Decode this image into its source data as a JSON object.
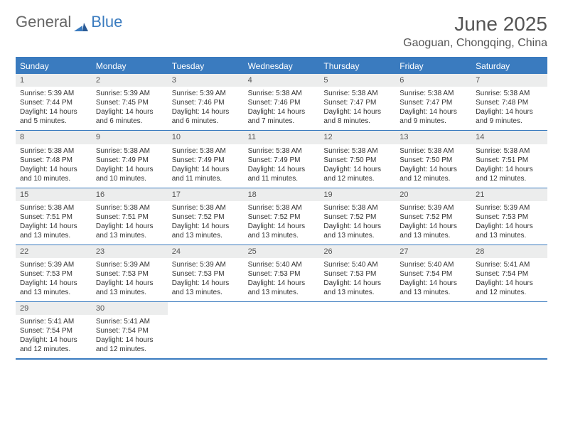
{
  "logo": {
    "text1": "General",
    "text2": "Blue"
  },
  "title": "June 2025",
  "location": "Gaoguan, Chongqing, China",
  "colors": {
    "accent": "#3a7bbf",
    "daynum_bg": "#eceded",
    "text": "#333333",
    "header_text": "#555555",
    "background": "#ffffff"
  },
  "typography": {
    "title_fontsize": 28,
    "location_fontsize": 16,
    "dow_fontsize": 12,
    "daynum_fontsize": 11,
    "body_fontsize": 10
  },
  "layout": {
    "columns": 7,
    "rows": 5
  },
  "dow": [
    "Sunday",
    "Monday",
    "Tuesday",
    "Wednesday",
    "Thursday",
    "Friday",
    "Saturday"
  ],
  "weeks": [
    [
      {
        "n": "1",
        "sr": "Sunrise: 5:39 AM",
        "ss": "Sunset: 7:44 PM",
        "dl": "Daylight: 14 hours and 5 minutes."
      },
      {
        "n": "2",
        "sr": "Sunrise: 5:39 AM",
        "ss": "Sunset: 7:45 PM",
        "dl": "Daylight: 14 hours and 6 minutes."
      },
      {
        "n": "3",
        "sr": "Sunrise: 5:39 AM",
        "ss": "Sunset: 7:46 PM",
        "dl": "Daylight: 14 hours and 6 minutes."
      },
      {
        "n": "4",
        "sr": "Sunrise: 5:38 AM",
        "ss": "Sunset: 7:46 PM",
        "dl": "Daylight: 14 hours and 7 minutes."
      },
      {
        "n": "5",
        "sr": "Sunrise: 5:38 AM",
        "ss": "Sunset: 7:47 PM",
        "dl": "Daylight: 14 hours and 8 minutes."
      },
      {
        "n": "6",
        "sr": "Sunrise: 5:38 AM",
        "ss": "Sunset: 7:47 PM",
        "dl": "Daylight: 14 hours and 9 minutes."
      },
      {
        "n": "7",
        "sr": "Sunrise: 5:38 AM",
        "ss": "Sunset: 7:48 PM",
        "dl": "Daylight: 14 hours and 9 minutes."
      }
    ],
    [
      {
        "n": "8",
        "sr": "Sunrise: 5:38 AM",
        "ss": "Sunset: 7:48 PM",
        "dl": "Daylight: 14 hours and 10 minutes."
      },
      {
        "n": "9",
        "sr": "Sunrise: 5:38 AM",
        "ss": "Sunset: 7:49 PM",
        "dl": "Daylight: 14 hours and 10 minutes."
      },
      {
        "n": "10",
        "sr": "Sunrise: 5:38 AM",
        "ss": "Sunset: 7:49 PM",
        "dl": "Daylight: 14 hours and 11 minutes."
      },
      {
        "n": "11",
        "sr": "Sunrise: 5:38 AM",
        "ss": "Sunset: 7:49 PM",
        "dl": "Daylight: 14 hours and 11 minutes."
      },
      {
        "n": "12",
        "sr": "Sunrise: 5:38 AM",
        "ss": "Sunset: 7:50 PM",
        "dl": "Daylight: 14 hours and 12 minutes."
      },
      {
        "n": "13",
        "sr": "Sunrise: 5:38 AM",
        "ss": "Sunset: 7:50 PM",
        "dl": "Daylight: 14 hours and 12 minutes."
      },
      {
        "n": "14",
        "sr": "Sunrise: 5:38 AM",
        "ss": "Sunset: 7:51 PM",
        "dl": "Daylight: 14 hours and 12 minutes."
      }
    ],
    [
      {
        "n": "15",
        "sr": "Sunrise: 5:38 AM",
        "ss": "Sunset: 7:51 PM",
        "dl": "Daylight: 14 hours and 13 minutes."
      },
      {
        "n": "16",
        "sr": "Sunrise: 5:38 AM",
        "ss": "Sunset: 7:51 PM",
        "dl": "Daylight: 14 hours and 13 minutes."
      },
      {
        "n": "17",
        "sr": "Sunrise: 5:38 AM",
        "ss": "Sunset: 7:52 PM",
        "dl": "Daylight: 14 hours and 13 minutes."
      },
      {
        "n": "18",
        "sr": "Sunrise: 5:38 AM",
        "ss": "Sunset: 7:52 PM",
        "dl": "Daylight: 14 hours and 13 minutes."
      },
      {
        "n": "19",
        "sr": "Sunrise: 5:38 AM",
        "ss": "Sunset: 7:52 PM",
        "dl": "Daylight: 14 hours and 13 minutes."
      },
      {
        "n": "20",
        "sr": "Sunrise: 5:39 AM",
        "ss": "Sunset: 7:52 PM",
        "dl": "Daylight: 14 hours and 13 minutes."
      },
      {
        "n": "21",
        "sr": "Sunrise: 5:39 AM",
        "ss": "Sunset: 7:53 PM",
        "dl": "Daylight: 14 hours and 13 minutes."
      }
    ],
    [
      {
        "n": "22",
        "sr": "Sunrise: 5:39 AM",
        "ss": "Sunset: 7:53 PM",
        "dl": "Daylight: 14 hours and 13 minutes."
      },
      {
        "n": "23",
        "sr": "Sunrise: 5:39 AM",
        "ss": "Sunset: 7:53 PM",
        "dl": "Daylight: 14 hours and 13 minutes."
      },
      {
        "n": "24",
        "sr": "Sunrise: 5:39 AM",
        "ss": "Sunset: 7:53 PM",
        "dl": "Daylight: 14 hours and 13 minutes."
      },
      {
        "n": "25",
        "sr": "Sunrise: 5:40 AM",
        "ss": "Sunset: 7:53 PM",
        "dl": "Daylight: 14 hours and 13 minutes."
      },
      {
        "n": "26",
        "sr": "Sunrise: 5:40 AM",
        "ss": "Sunset: 7:53 PM",
        "dl": "Daylight: 14 hours and 13 minutes."
      },
      {
        "n": "27",
        "sr": "Sunrise: 5:40 AM",
        "ss": "Sunset: 7:54 PM",
        "dl": "Daylight: 14 hours and 13 minutes."
      },
      {
        "n": "28",
        "sr": "Sunrise: 5:41 AM",
        "ss": "Sunset: 7:54 PM",
        "dl": "Daylight: 14 hours and 12 minutes."
      }
    ],
    [
      {
        "n": "29",
        "sr": "Sunrise: 5:41 AM",
        "ss": "Sunset: 7:54 PM",
        "dl": "Daylight: 14 hours and 12 minutes."
      },
      {
        "n": "30",
        "sr": "Sunrise: 5:41 AM",
        "ss": "Sunset: 7:54 PM",
        "dl": "Daylight: 14 hours and 12 minutes."
      },
      null,
      null,
      null,
      null,
      null
    ]
  ]
}
